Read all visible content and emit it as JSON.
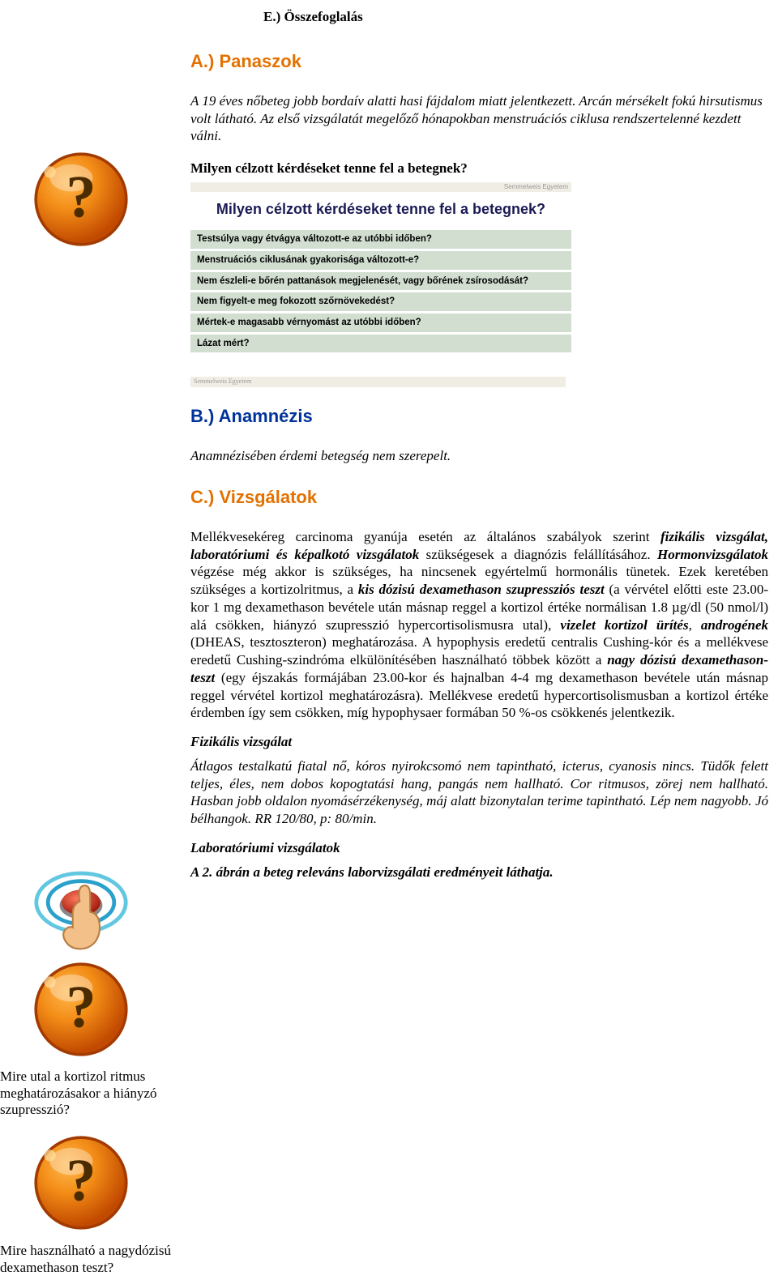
{
  "colors": {
    "heading_accent": "#e37100",
    "slide_title_color": "#1a1a55",
    "slide_row_bg": "#d1ded0",
    "slide_tag_bg": "#f0ede5",
    "slide_tag_text": "#999999",
    "button_orange_outer": "#d35400",
    "button_orange_inner": "#f38d17",
    "button_qmark": "#4b2b00",
    "touch_ring1": "#62c7e0",
    "touch_ring2": "#2aa0cc",
    "touch_finger_skin": "#f4c089",
    "touch_finger_shadow": "#b77f43",
    "touch_button_red": "#c0392b",
    "touch_button_rim": "#888"
  },
  "e_title": "E.) Összefoglalás",
  "a": {
    "heading": "A.) Panaszok",
    "intro": "A 19 éves nőbeteg jobb bordaív alatti hasi fájdalom miatt jelentkezett. Arcán mérsékelt fokú hirsutismus volt látható. Az első vizsgálatát megelőző hónapokban menstruációs ciklusa rendszertelenné kezdett válni.",
    "prompt": "Milyen célzott kérdéseket tenne fel a betegnek?",
    "slide_tag": "Semmelweis Egyetem",
    "slide_title": "Milyen célzott kérdéseket tenne fel a betegnek?",
    "questions": [
      "Testsúlya vagy étvágya változott-e az utóbbi időben?",
      "Menstruációs ciklusának gyakorisága változott-e?",
      "Nem észleli-e bőrén pattanások megjelenését, vagy bőrének zsírosodását?",
      "Nem figyelt-e meg fokozott szőrnövekedést?",
      "Mértek-e magasabb vérnyomást az utóbbi időben?",
      "Lázat mért?"
    ],
    "footer_tag": "Semmelweis Egyetem"
  },
  "b": {
    "heading": "B.) Anamnézis",
    "text": "Anamnézisében érdemi betegség nem szerepelt."
  },
  "c": {
    "heading": "C.) Vizsgálatok",
    "body_segments": [
      {
        "t": "plain",
        "v": "Mellékvesekéreg carcinoma gyanúja esetén az általános szabályok szerint "
      },
      {
        "t": "bi",
        "v": "fizikális vizsgálat, laboratóriumi és képalkotó vizsgálatok"
      },
      {
        "t": "plain",
        "v": " szükségesek a diagnózis felállításához. "
      },
      {
        "t": "bi",
        "v": "Hormonvizsgálatok"
      },
      {
        "t": "plain",
        "v": " végzése még akkor is szükséges, ha nincsenek egyértelmű hormonális tünetek. Ezek keretében szükséges a kortizolritmus, a "
      },
      {
        "t": "bi",
        "v": "kis dózisú dexamethason szupressziós teszt"
      },
      {
        "t": "plain",
        "v": " (a vérvétel előtti este 23.00-kor 1 mg dexamethason bevétele után másnap reggel a kortizol értéke normálisan 1.8 "
      },
      {
        "t": "plain",
        "v": "µg/dl (50 nmol/l) alá csökken, hiányzó szupresszió hypercortisolismusra utal), "
      },
      {
        "t": "bi",
        "v": "vizelet kortizol ürítés"
      },
      {
        "t": "plain",
        "v": ", "
      },
      {
        "t": "bi",
        "v": "androgének"
      },
      {
        "t": "plain",
        "v": " (DHEAS, tesztoszteron) meghatározása. A hypophysis eredetű centralis Cushing-kór és a mellékvese eredetű Cushing-szindróma elkülönítésében használható többek között a "
      },
      {
        "t": "bi",
        "v": "nagy dózisú dexamethason-teszt"
      },
      {
        "t": "plain",
        "v": " (egy éjszakás formájában 23.00-kor és hajnalban 4-4 mg dexamethason bevétele után másnap reggel vérvétel kortizol meghatározásra). Mellékvese eredetű hypercortisolismusban a kortizol értéke érdemben így sem csökken, míg hypophysaer formában 50 %-os csökkenés jelentkezik."
      }
    ],
    "phys_h": "Fizikális vizsgálat",
    "phys_body": "Átlagos testalkatú fiatal nő, kóros nyirokcsomó nem tapintható, icterus, cyanosis nincs. Tüdők felett teljes, éles, nem dobos kopogtatási hang, pangás nem hallható. Cor ritmusos, zörej nem hallható. Hasban jobb oldalon nyomásérzékenység, máj alatt bizonytalan terime tapintható. Lép nem nagyobb. Jó bélhangok. RR 120/80, p: 80/min.",
    "lab_h": "Laboratóriumi vizsgálatok",
    "lab_body": "A 2. ábrán a beteg releváns laborvizsgálati eredményeit láthatja."
  },
  "side": {
    "q1": "Mire utal a kortizol ritmus meghatározásakor a hiányzó szupresszió?",
    "q2": "Mire használható a nagydózisú dexamethason teszt?"
  }
}
